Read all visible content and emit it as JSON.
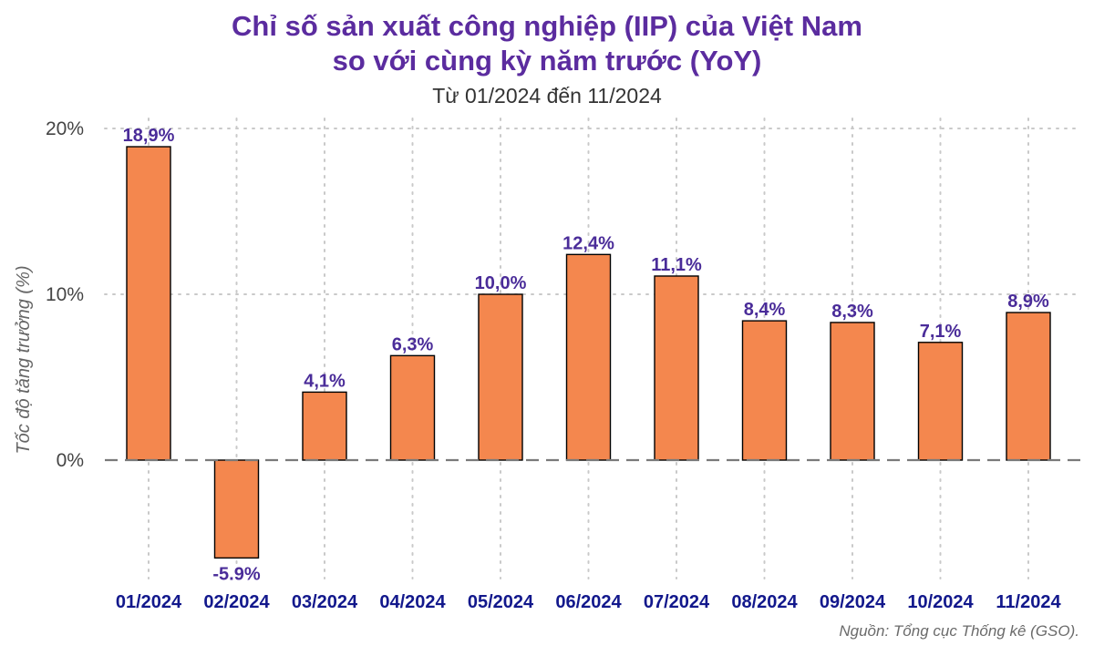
{
  "chart_data": {
    "type": "bar",
    "title_line1": "Chỉ số sản xuất công nghiệp (IIP) của Việt Nam",
    "title_line2": "so với cùng kỳ năm trước (YoY)",
    "subtitle": "Từ 01/2024 đến 11/2024",
    "ylabel": "Tốc độ tăng trưởng (%)",
    "xlabel": "",
    "source": "Nguồn: Tổng cục Thống kê (GSO).",
    "categories": [
      "01/2024",
      "02/2024",
      "03/2024",
      "04/2024",
      "05/2024",
      "06/2024",
      "07/2024",
      "08/2024",
      "09/2024",
      "10/2024",
      "11/2024"
    ],
    "values": [
      18.9,
      -5.9,
      4.1,
      6.3,
      10.0,
      12.4,
      11.1,
      8.4,
      8.3,
      7.1,
      8.9
    ],
    "data_labels": [
      "18,9%",
      "-5.9%",
      "4,1%",
      "6,3%",
      "10,0%",
      "12,4%",
      "11,1%",
      "8,4%",
      "8,3%",
      "7,1%",
      "8,9%"
    ],
    "yticks": [
      0,
      10,
      20
    ],
    "ytick_labels": [
      "0%",
      "10%",
      "20%"
    ],
    "ylim": [
      -7,
      20
    ],
    "grid": true,
    "zero_line": "dashed",
    "legend": "none",
    "colors": {
      "bar": "#f4874e",
      "title": "#5b2c9f",
      "data_label": "#4a2c99",
      "x_tick": "#12188c"
    }
  }
}
